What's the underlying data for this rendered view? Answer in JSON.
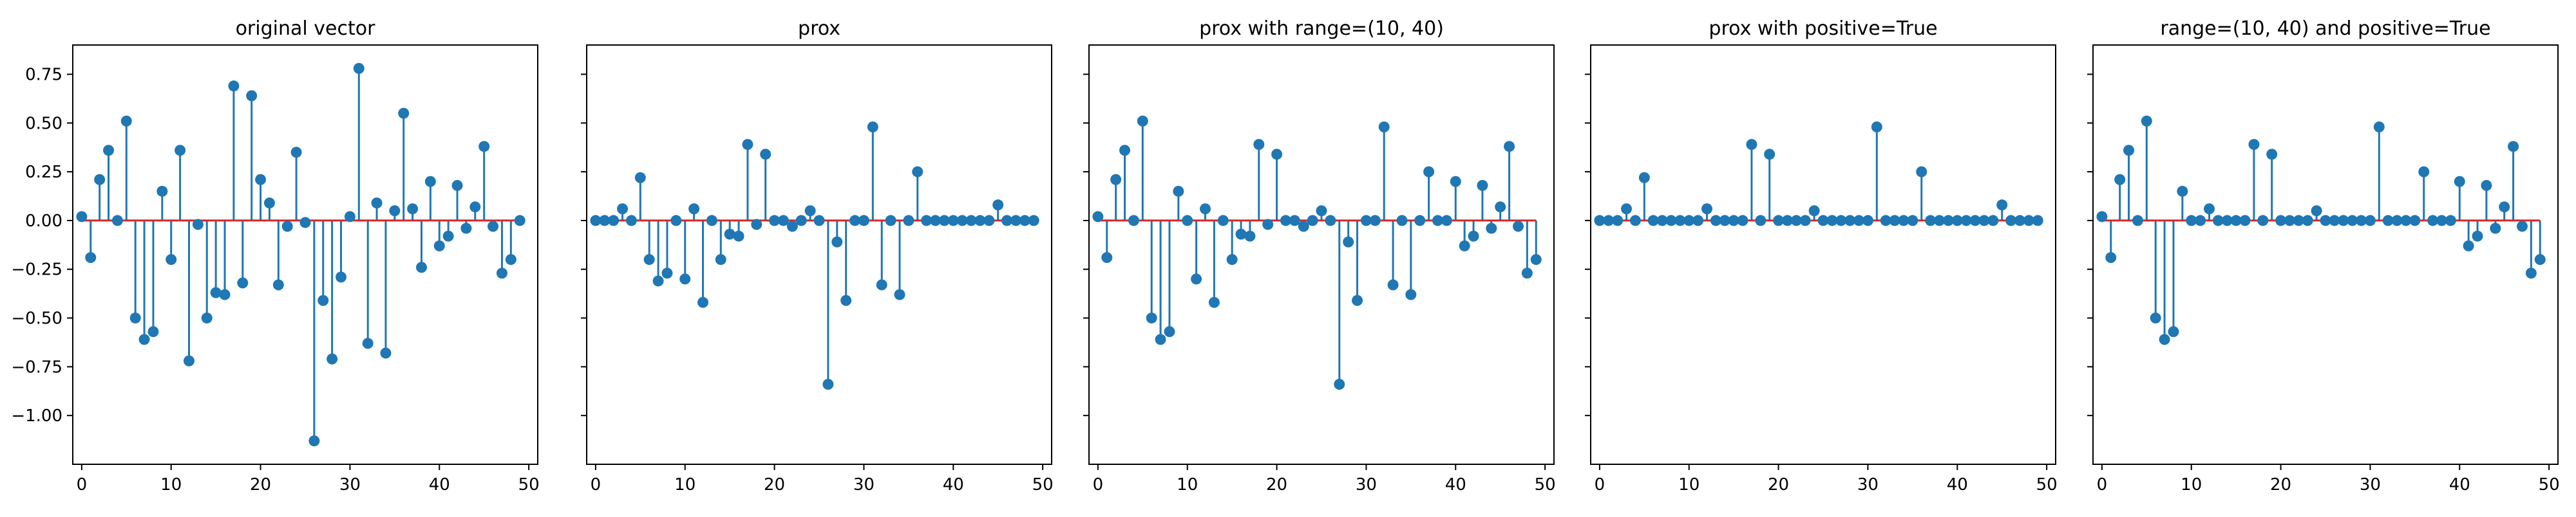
{
  "colors": {
    "stem": "#1f77b4",
    "baseline": "#d62728",
    "axes": "#000000",
    "background": "#ffffff"
  },
  "chart_data": [
    {
      "type": "stem",
      "title": "original vector",
      "xlim": [
        -1,
        51
      ],
      "ylim": [
        -1.25,
        0.9
      ],
      "xticks": [
        0,
        10,
        20,
        30,
        40,
        50
      ],
      "yticks": [
        -1.0,
        -0.75,
        -0.5,
        -0.25,
        0.0,
        0.25,
        0.5,
        0.75
      ],
      "ytick_labels": [
        "−1.00",
        "−0.75",
        "−0.50",
        "−0.25",
        "0.00",
        "0.25",
        "0.50",
        "0.75"
      ],
      "show_ytick_labels": true,
      "x": [
        0,
        1,
        2,
        3,
        4,
        5,
        6,
        7,
        8,
        9,
        10,
        11,
        12,
        13,
        14,
        15,
        16,
        17,
        18,
        19,
        20,
        21,
        22,
        23,
        24,
        25,
        26,
        27,
        28,
        29,
        30,
        31,
        32,
        33,
        34,
        35,
        36,
        37,
        38,
        39,
        40,
        41,
        42,
        43,
        44,
        45,
        46,
        47,
        48,
        49
      ],
      "values": [
        0.02,
        -0.19,
        0.21,
        0.36,
        0.0,
        0.51,
        -0.5,
        -0.61,
        -0.57,
        0.15,
        -0.2,
        0.36,
        -0.72,
        -0.02,
        -0.5,
        -0.37,
        -0.38,
        0.69,
        -0.32,
        0.64,
        0.21,
        0.09,
        -0.33,
        -0.03,
        0.35,
        -0.01,
        -1.13,
        -0.41,
        -0.71,
        -0.29,
        0.02,
        0.78,
        -0.63,
        0.09,
        -0.68,
        0.05,
        0.55,
        0.06,
        -0.24,
        0.2,
        -0.13,
        -0.08,
        0.18,
        -0.04,
        0.07,
        0.38,
        -0.03,
        -0.27,
        -0.2,
        0.0
      ]
    },
    {
      "type": "stem",
      "title": "prox",
      "xlim": [
        -1,
        51
      ],
      "ylim": [
        -1.25,
        0.9
      ],
      "xticks": [
        0,
        10,
        20,
        30,
        40,
        50
      ],
      "yticks": [
        -1.0,
        -0.75,
        -0.5,
        -0.25,
        0.0,
        0.25,
        0.5,
        0.75
      ],
      "show_ytick_labels": false,
      "x": [
        0,
        1,
        2,
        3,
        4,
        5,
        6,
        7,
        8,
        9,
        10,
        11,
        12,
        13,
        14,
        15,
        16,
        17,
        18,
        19,
        20,
        21,
        22,
        23,
        24,
        25,
        26,
        27,
        28,
        29,
        30,
        31,
        32,
        33,
        34,
        35,
        36,
        37,
        38,
        39,
        40,
        41,
        42,
        43,
        44,
        45,
        46,
        47,
        48,
        49
      ],
      "values": [
        0.0,
        0.0,
        0.0,
        0.06,
        0.0,
        0.22,
        -0.2,
        -0.31,
        -0.27,
        0.0,
        -0.3,
        0.06,
        -0.42,
        0.0,
        -0.2,
        -0.07,
        -0.08,
        0.39,
        -0.02,
        0.34,
        0.0,
        0.0,
        -0.03,
        0.0,
        0.05,
        0.0,
        -0.84,
        -0.11,
        -0.41,
        0.0,
        0.0,
        0.48,
        -0.33,
        0.0,
        -0.38,
        0.0,
        0.25,
        0.0,
        0.0,
        0.0,
        0.0,
        0.0,
        0.0,
        0.0,
        0.0,
        0.08,
        0.0,
        0.0,
        0.0,
        0.0
      ]
    },
    {
      "type": "stem",
      "title": "prox with range=(10, 40)",
      "xlim": [
        -1,
        51
      ],
      "ylim": [
        -1.25,
        0.9
      ],
      "xticks": [
        0,
        10,
        20,
        30,
        40,
        50
      ],
      "yticks": [
        -1.0,
        -0.75,
        -0.5,
        -0.25,
        0.0,
        0.25,
        0.5,
        0.75
      ],
      "show_ytick_labels": false,
      "x": [
        0,
        1,
        2,
        3,
        4,
        5,
        6,
        7,
        8,
        9,
        10,
        11,
        12,
        13,
        14,
        15,
        16,
        17,
        18,
        19,
        20,
        21,
        22,
        23,
        24,
        25,
        26,
        27,
        28,
        29,
        30,
        31,
        32,
        33,
        34,
        35,
        36,
        37,
        38,
        39,
        40,
        41,
        42,
        43,
        44,
        45,
        46,
        47,
        48,
        49
      ],
      "values": [
        0.02,
        -0.19,
        0.21,
        0.36,
        0.0,
        0.51,
        -0.5,
        -0.61,
        -0.57,
        0.15,
        0.0,
        -0.3,
        0.06,
        -0.42,
        0.0,
        -0.2,
        -0.07,
        -0.08,
        0.39,
        -0.02,
        0.34,
        0.0,
        0.0,
        -0.03,
        0.0,
        0.05,
        0.0,
        -0.84,
        -0.11,
        -0.41,
        0.0,
        0.0,
        0.48,
        -0.33,
        0.0,
        -0.38,
        0.0,
        0.25,
        0.0,
        0.0,
        0.2,
        -0.13,
        -0.08,
        0.18,
        -0.04,
        0.07,
        0.38,
        -0.03,
        -0.27,
        -0.2
      ]
    },
    {
      "type": "stem",
      "title": "prox with positive=True",
      "xlim": [
        -1,
        51
      ],
      "ylim": [
        -1.25,
        0.9
      ],
      "xticks": [
        0,
        10,
        20,
        30,
        40,
        50
      ],
      "yticks": [
        -1.0,
        -0.75,
        -0.5,
        -0.25,
        0.0,
        0.25,
        0.5,
        0.75
      ],
      "show_ytick_labels": false,
      "x": [
        0,
        1,
        2,
        3,
        4,
        5,
        6,
        7,
        8,
        9,
        10,
        11,
        12,
        13,
        14,
        15,
        16,
        17,
        18,
        19,
        20,
        21,
        22,
        23,
        24,
        25,
        26,
        27,
        28,
        29,
        30,
        31,
        32,
        33,
        34,
        35,
        36,
        37,
        38,
        39,
        40,
        41,
        42,
        43,
        44,
        45,
        46,
        47,
        48,
        49
      ],
      "values": [
        0.0,
        0.0,
        0.0,
        0.06,
        0.0,
        0.22,
        0.0,
        0.0,
        0.0,
        0.0,
        0.0,
        0.0,
        0.06,
        0.0,
        0.0,
        0.0,
        0.0,
        0.39,
        0.0,
        0.34,
        0.0,
        0.0,
        0.0,
        0.0,
        0.05,
        0.0,
        0.0,
        0.0,
        0.0,
        0.0,
        0.0,
        0.48,
        0.0,
        0.0,
        0.0,
        0.0,
        0.25,
        0.0,
        0.0,
        0.0,
        0.0,
        0.0,
        0.0,
        0.0,
        0.0,
        0.08,
        0.0,
        0.0,
        0.0,
        0.0
      ]
    },
    {
      "type": "stem",
      "title": "range=(10, 40) and positive=True",
      "xlim": [
        -1,
        51
      ],
      "ylim": [
        -1.25,
        0.9
      ],
      "xticks": [
        0,
        10,
        20,
        30,
        40,
        50
      ],
      "yticks": [
        -1.0,
        -0.75,
        -0.5,
        -0.25,
        0.0,
        0.25,
        0.5,
        0.75
      ],
      "show_ytick_labels": false,
      "x": [
        0,
        1,
        2,
        3,
        4,
        5,
        6,
        7,
        8,
        9,
        10,
        11,
        12,
        13,
        14,
        15,
        16,
        17,
        18,
        19,
        20,
        21,
        22,
        23,
        24,
        25,
        26,
        27,
        28,
        29,
        30,
        31,
        32,
        33,
        34,
        35,
        36,
        37,
        38,
        39,
        40,
        41,
        42,
        43,
        44,
        45,
        46,
        47,
        48,
        49
      ],
      "values": [
        0.02,
        -0.19,
        0.21,
        0.36,
        0.0,
        0.51,
        -0.5,
        -0.61,
        -0.57,
        0.15,
        0.0,
        0.0,
        0.06,
        0.0,
        0.0,
        0.0,
        0.0,
        0.39,
        0.0,
        0.34,
        0.0,
        0.0,
        0.0,
        0.0,
        0.05,
        0.0,
        0.0,
        0.0,
        0.0,
        0.0,
        0.0,
        0.48,
        0.0,
        0.0,
        0.0,
        0.0,
        0.25,
        0.0,
        0.0,
        0.0,
        0.2,
        -0.13,
        -0.08,
        0.18,
        -0.04,
        0.07,
        0.38,
        -0.03,
        -0.27,
        -0.2
      ]
    }
  ]
}
